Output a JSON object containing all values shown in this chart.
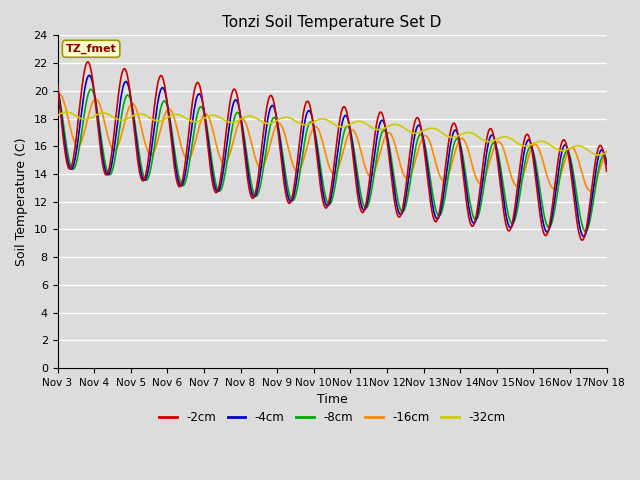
{
  "title": "Tonzi Soil Temperature Set D",
  "xlabel": "Time",
  "ylabel": "Soil Temperature (C)",
  "annotation_text": "TZ_fmet",
  "annotation_box_color": "#FFFFCC",
  "annotation_text_color": "#8B0000",
  "ylim": [
    0,
    24
  ],
  "yticks": [
    0,
    2,
    4,
    6,
    8,
    10,
    12,
    14,
    16,
    18,
    20,
    22,
    24
  ],
  "colors": {
    "-2cm": "#CC0000",
    "-4cm": "#0000CC",
    "-8cm": "#00AA00",
    "-16cm": "#FF8800",
    "-32cm": "#CCCC00"
  },
  "legend_labels": [
    "-2cm",
    "-4cm",
    "-8cm",
    "-16cm",
    "-32cm"
  ],
  "x_tick_labels": [
    "Nov 3",
    "Nov 4",
    "Nov 5",
    "Nov 6",
    "Nov 7",
    "Nov 8",
    "Nov 9",
    "Nov 10",
    "Nov 11",
    "Nov 12",
    "Nov 13",
    "Nov 14",
    "Nov 15",
    "Nov 16",
    "Nov 17",
    "Nov 18"
  ],
  "bg_color": "#DCDCDC",
  "linewidth": 1.2,
  "figsize": [
    6.4,
    4.8
  ],
  "dpi": 100
}
